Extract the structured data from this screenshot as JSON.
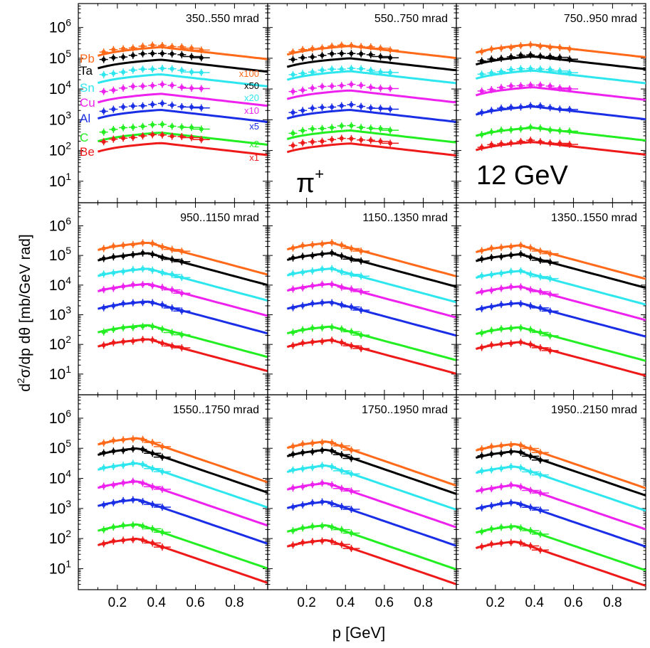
{
  "chart_data": {
    "type": "scatter",
    "figure": {
      "xlabel": "p [GeV]",
      "ylabel": "d²σ/dp dθ [mb/GeV rad]",
      "x_ticks": [
        0.2,
        0.4,
        0.6,
        0.8
      ],
      "xlim": [
        0.0,
        0.97
      ],
      "y_scale": "log",
      "ylim": [
        2,
        6000000
      ],
      "y_tick_exponents": [
        1,
        2,
        3,
        4,
        5,
        6
      ],
      "particle_label": "π+",
      "energy_label": "12 GeV",
      "curve_style": "lines = model, points with error bars = data"
    },
    "targets": [
      {
        "name": "Pb",
        "color": "#ff6a1a",
        "scale": "x100"
      },
      {
        "name": "Ta",
        "color": "#000000",
        "scale": "x50"
      },
      {
        "name": "Sn",
        "color": "#2ee6ee",
        "scale": "x20"
      },
      {
        "name": "Cu",
        "color": "#ee22ee",
        "scale": "x10"
      },
      {
        "name": "Al",
        "color": "#1a2ee6",
        "scale": "x5"
      },
      {
        "name": "C",
        "color": "#22ee22",
        "scale": "x2"
      },
      {
        "name": "Be",
        "color": "#ee1a1a",
        "scale": "x1"
      }
    ],
    "panels": [
      {
        "label": "350..550 mrad",
        "p_max": 0.65,
        "model_end": 0.97,
        "amp": [
          270000,
          150000,
          48000,
          14000,
          3300,
          700,
          330
        ],
        "model_amp": [
          230000,
          90000,
          30000,
          7000,
          2100,
          380,
          175
        ]
      },
      {
        "label": "550..750 mrad",
        "p_max": 0.65,
        "model_end": 0.97,
        "amp": [
          270000,
          150000,
          48000,
          14000,
          3000,
          640,
          250
        ],
        "model_amp": [
          250000,
          100000,
          38000,
          9000,
          2100,
          450,
          170
        ]
      },
      {
        "label": "750..950 mrad",
        "p_max": 0.6,
        "model_end": 0.97,
        "amp": [
          270000,
          130000,
          48000,
          14000,
          2900,
          560,
          210
        ],
        "model_amp": [
          280000,
          115000,
          40000,
          11500,
          2700,
          550,
          190
        ]
      },
      {
        "label": "950..1150 mrad",
        "p_max": 0.55,
        "model_end": 0.97,
        "amp": [
          270000,
          120000,
          36000,
          11000,
          2800,
          430,
          150
        ],
        "model_amp": [
          270000,
          120000,
          36000,
          11000,
          2800,
          450,
          150
        ]
      },
      {
        "label": "1150..1350 mrad",
        "p_max": 0.5,
        "model_end": 0.97,
        "amp": [
          270000,
          120000,
          36000,
          11000,
          2700,
          400,
          140
        ],
        "model_amp": [
          270000,
          120000,
          36000,
          11000,
          2700,
          400,
          140
        ]
      },
      {
        "label": "1350..1550 mrad",
        "p_max": 0.5,
        "model_end": 0.97,
        "amp": [
          220000,
          110000,
          30000,
          9000,
          2500,
          380,
          120
        ],
        "model_amp": [
          220000,
          110000,
          30000,
          9000,
          2500,
          380,
          120
        ]
      },
      {
        "label": "1550..1750 mrad",
        "p_max": 0.47,
        "model_end": 0.97,
        "amp": [
          220000,
          100000,
          32000,
          8000,
          2000,
          300,
          100
        ],
        "model_amp": [
          220000,
          100000,
          32000,
          8000,
          2000,
          300,
          100
        ]
      },
      {
        "label": "1750..1950 mrad",
        "p_max": 0.47,
        "model_end": 0.97,
        "amp": [
          170000,
          90000,
          27000,
          7000,
          1700,
          280,
          90
        ],
        "model_amp": [
          170000,
          90000,
          27000,
          7000,
          1700,
          280,
          90
        ]
      },
      {
        "label": "1950..2150 mrad",
        "p_max": 0.47,
        "model_end": 0.97,
        "amp": [
          140000,
          80000,
          25000,
          6000,
          1600,
          260,
          80
        ],
        "model_amp": [
          140000,
          80000,
          25000,
          6000,
          1600,
          260,
          80
        ]
      }
    ]
  }
}
